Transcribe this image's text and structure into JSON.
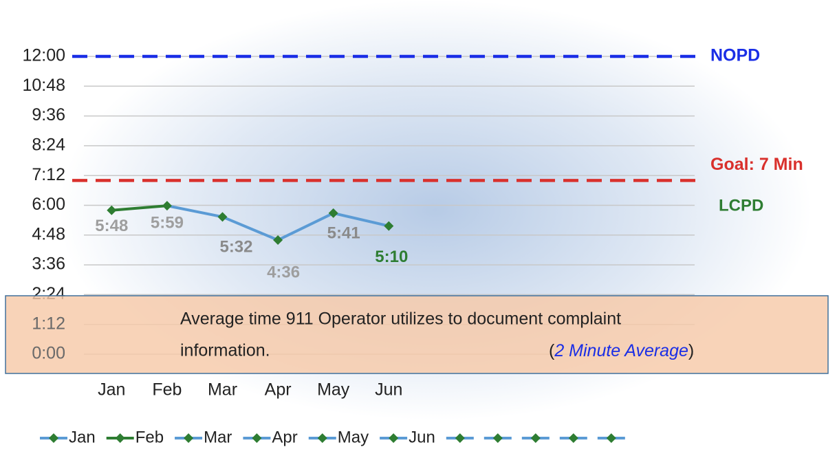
{
  "chart_data": {
    "type": "line",
    "categories": [
      "Jan",
      "Feb",
      "Mar",
      "Apr",
      "May",
      "Jun"
    ],
    "values": [
      5.8,
      5.9833,
      5.5333,
      4.6,
      5.6833,
      5.1667
    ],
    "value_labels": [
      "5:48",
      "5:59",
      "5:32",
      "4:36",
      "5:41",
      "5:10"
    ],
    "value_label_colors": [
      "#9e9e9e",
      "#9e9e9e",
      "#8a8a8a",
      "#9e9e9e",
      "#8a8a8a",
      "#2e7d32"
    ],
    "segment_colors": [
      "#2e7d32",
      "#5b9bd5",
      "#5b9bd5",
      "#5b9bd5",
      "#5b9bd5"
    ],
    "marker_color": "#2e7d32",
    "ylim": [
      0,
      12
    ],
    "yticks": [
      {
        "value": 0,
        "label": "0:00"
      },
      {
        "value": 1.2,
        "label": "1:12"
      },
      {
        "value": 2.4,
        "label": "2:24"
      },
      {
        "value": 3.6,
        "label": "3:36"
      },
      {
        "value": 4.8,
        "label": "4:48"
      },
      {
        "value": 6,
        "label": "6:00"
      },
      {
        "value": 7.2,
        "label": "7:12"
      },
      {
        "value": 8.4,
        "label": "8:24"
      },
      {
        "value": 9.6,
        "label": "9:36"
      },
      {
        "value": 10.8,
        "label": "10:48"
      },
      {
        "value": 12,
        "label": "12:00"
      }
    ],
    "grid": true,
    "reference_lines": [
      {
        "label": "NOPD",
        "value": 12,
        "color": "#1a2ee6"
      },
      {
        "label": "Goal: 7 Min",
        "value": 7,
        "color": "#d9302c"
      }
    ],
    "series_label": {
      "text": "LCPD",
      "color": "#2e7d32"
    },
    "annotation": {
      "lines": [
        "Average time 911 Operator utilizes to document  complaint",
        "information."
      ],
      "note": [
        "(",
        "2 Minute Average",
        ")"
      ]
    },
    "legend": [
      {
        "name": "Jan",
        "color": "#5b9bd5"
      },
      {
        "name": "Feb",
        "color": "#2e7d32"
      },
      {
        "name": "Mar",
        "color": "#5b9bd5"
      },
      {
        "name": "Apr",
        "color": "#5b9bd5"
      },
      {
        "name": "May",
        "color": "#5b9bd5"
      },
      {
        "name": "Jun",
        "color": "#5b9bd5"
      }
    ]
  }
}
